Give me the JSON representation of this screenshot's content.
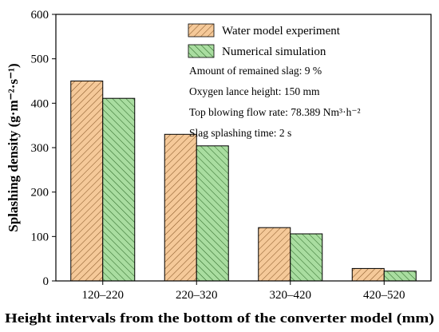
{
  "chart_data": {
    "type": "bar",
    "categories": [
      "120–220",
      "220–320",
      "320–420",
      "420–520"
    ],
    "series": [
      {
        "name": "Water model experiment",
        "values": [
          450,
          330,
          120,
          28
        ],
        "color": "#F5C999",
        "hatch_color": "#8a5a2a"
      },
      {
        "name": "Numerical simulation",
        "values": [
          411,
          304,
          106,
          22
        ],
        "color": "#A9DDA0",
        "hatch_color": "#2f6b2a"
      }
    ],
    "title": "",
    "xlabel": "Height intervals from the bottom of the converter model (mm)",
    "ylabel": "Splashing density (g·m⁻²·s⁻¹)",
    "ylim": [
      0,
      600
    ],
    "yticks": [
      0,
      100,
      200,
      300,
      400,
      500,
      600
    ],
    "grid": false,
    "legend_position": "top-right",
    "annotations": [
      {
        "text": "Amount of remained slag: 9 %"
      },
      {
        "text": "Oxygen lance height: 150 mm"
      },
      {
        "text": "Top blowing flow rate: 78.389 Nm³·h⁻²"
      },
      {
        "text": "Slag splashing time: 2 s"
      }
    ]
  }
}
